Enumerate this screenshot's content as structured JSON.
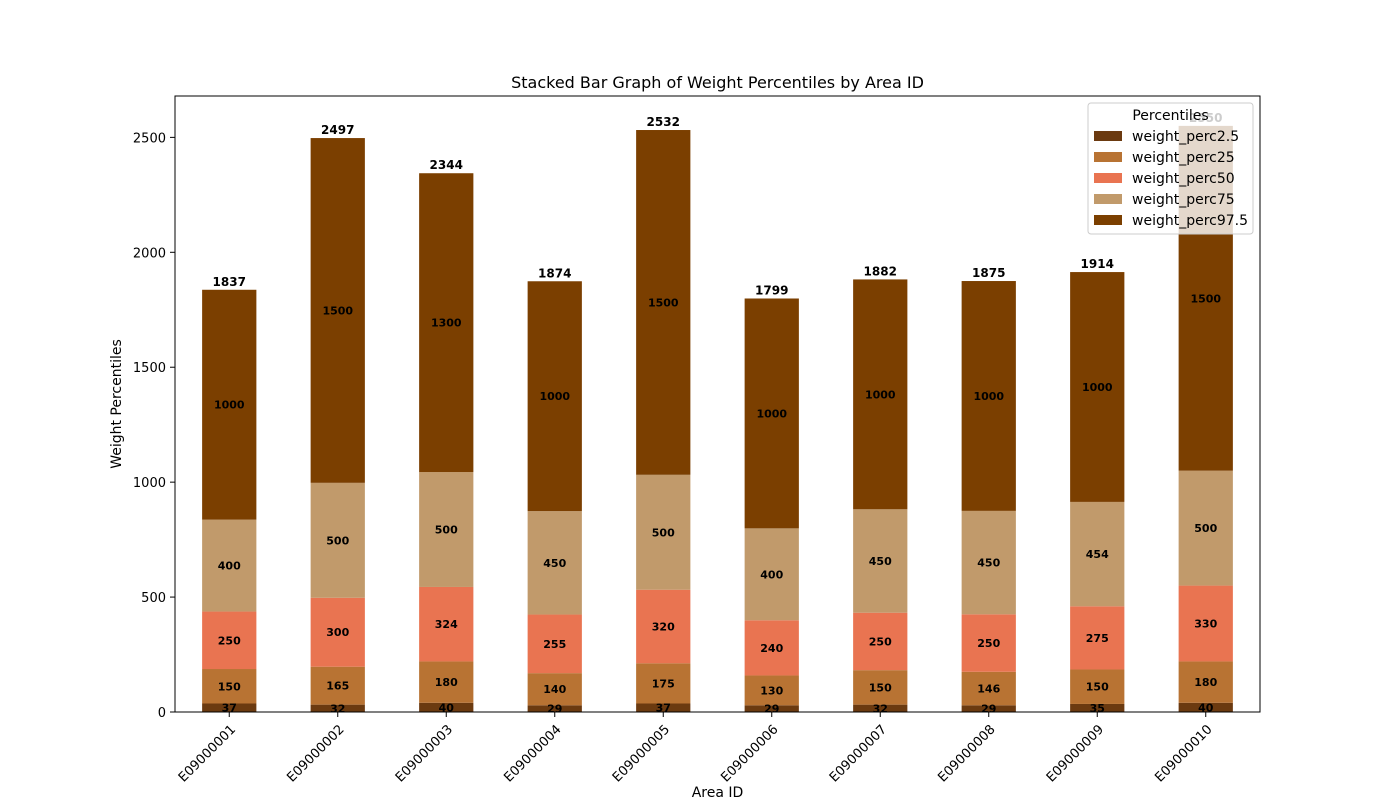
{
  "chart_data": {
    "type": "bar",
    "stacked": true,
    "title": "Stacked Bar Graph of Weight Percentiles by Area ID",
    "xlabel": "Area ID",
    "ylabel": "Weight Percentiles",
    "ylim": [
      0,
      2680
    ],
    "yticks": [
      0,
      500,
      1000,
      1500,
      2000,
      2500
    ],
    "grid": false,
    "legend": {
      "title": "Percentiles",
      "placement": "top-right"
    },
    "categories": [
      "E09000001",
      "E09000002",
      "E09000003",
      "E09000004",
      "E09000005",
      "E09000006",
      "E09000007",
      "E09000008",
      "E09000009",
      "E09000010"
    ],
    "series": [
      {
        "name": "weight_perc2.5",
        "color": "#6b3a10",
        "values": [
          37,
          32,
          40,
          29,
          37,
          29,
          32,
          29,
          35,
          40
        ]
      },
      {
        "name": "weight_perc25",
        "color": "#b87333",
        "values": [
          150,
          165,
          180,
          140,
          175,
          130,
          150,
          146,
          150,
          180
        ]
      },
      {
        "name": "weight_perc50",
        "color": "#e97451",
        "values": [
          250,
          300,
          324,
          255,
          320,
          240,
          250,
          250,
          275,
          330
        ]
      },
      {
        "name": "weight_perc75",
        "color": "#c19a6b",
        "values": [
          400,
          500,
          500,
          450,
          500,
          400,
          450,
          450,
          454,
          500
        ]
      },
      {
        "name": "weight_perc97.5",
        "color": "#7b3f00",
        "values": [
          1000,
          1500,
          1300,
          1000,
          1500,
          1000,
          1000,
          1000,
          1000,
          1500
        ]
      }
    ],
    "totals": [
      1837,
      2497,
      2344,
      1874,
      2532,
      1799,
      1882,
      1875,
      1914,
      2550
    ]
  }
}
